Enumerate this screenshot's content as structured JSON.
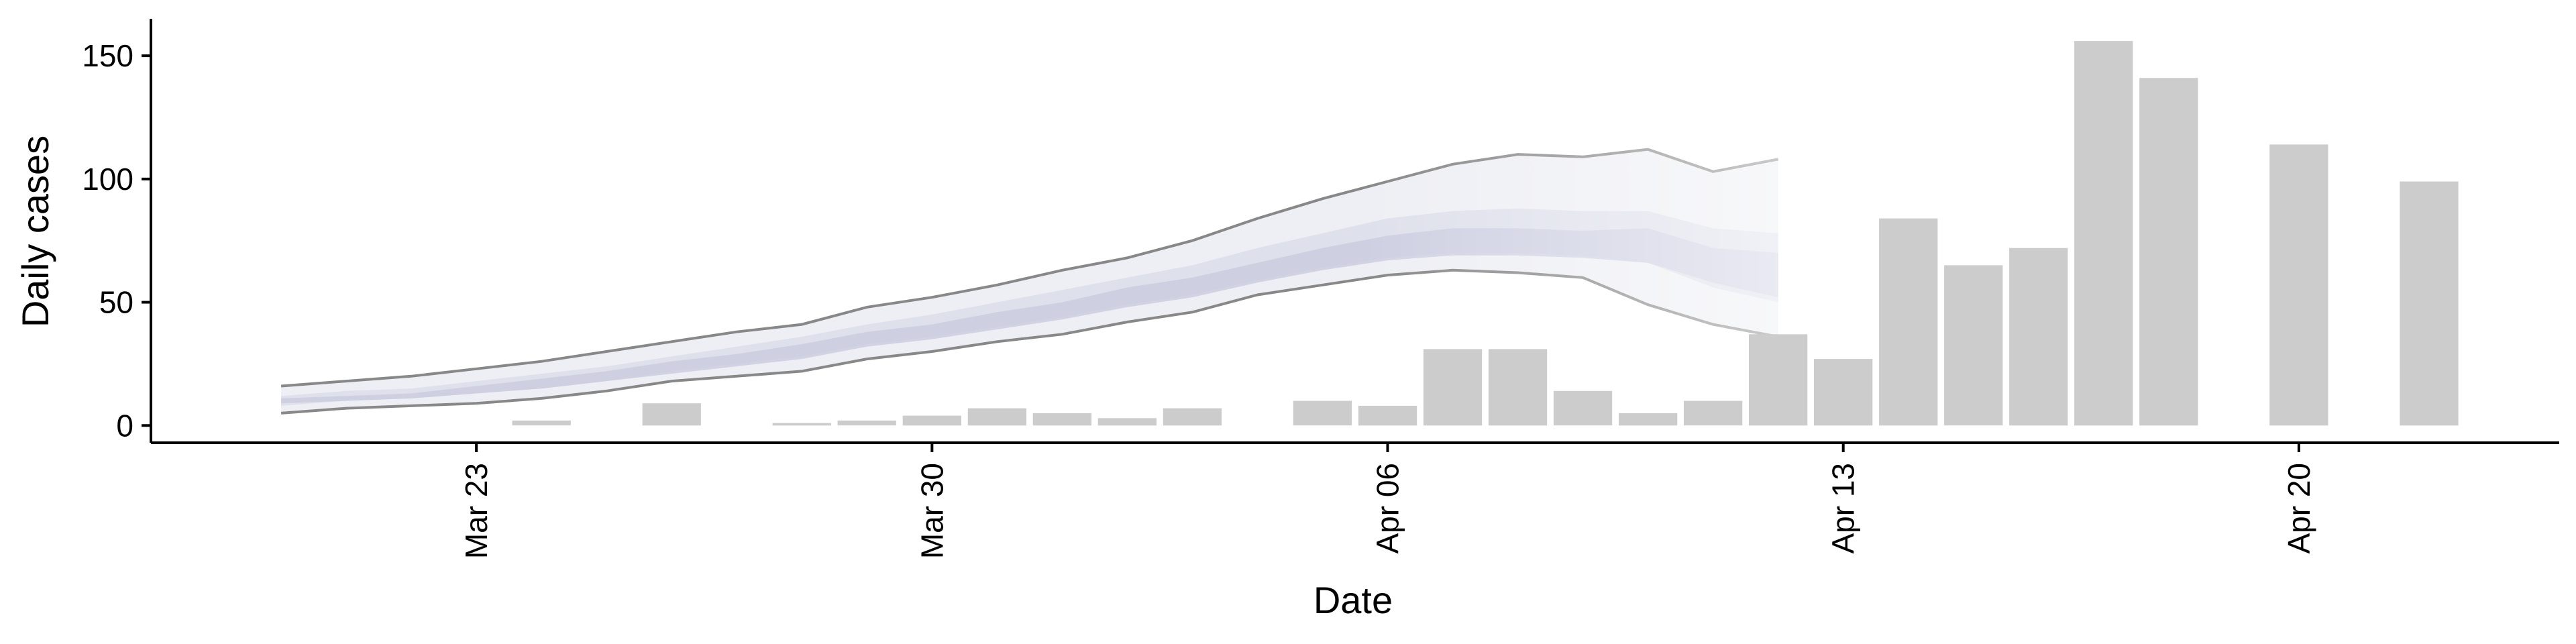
{
  "chart_data": {
    "type": "bar",
    "title": "",
    "xlabel": "Date",
    "ylabel": "Daily cases",
    "xlim": [
      "2020-03-18",
      "2020-04-24"
    ],
    "ylim": [
      -7,
      165
    ],
    "grid": false,
    "x_ticks": [
      {
        "date": "2020-03-23",
        "label": "Mar 23"
      },
      {
        "date": "2020-03-30",
        "label": "Mar 30"
      },
      {
        "date": "2020-04-06",
        "label": "Apr 06"
      },
      {
        "date": "2020-04-13",
        "label": "Apr 13"
      },
      {
        "date": "2020-04-20",
        "label": "Apr 20"
      }
    ],
    "y_ticks": [
      0,
      50,
      100,
      150
    ],
    "bar_color": "#cccccc",
    "bars": [
      {
        "date": "2020-03-24",
        "value": 2
      },
      {
        "date": "2020-03-26",
        "value": 9
      },
      {
        "date": "2020-03-28",
        "value": 1
      },
      {
        "date": "2020-03-29",
        "value": 2
      },
      {
        "date": "2020-03-30",
        "value": 4
      },
      {
        "date": "2020-03-31",
        "value": 7
      },
      {
        "date": "2020-04-01",
        "value": 5
      },
      {
        "date": "2020-04-02",
        "value": 3
      },
      {
        "date": "2020-04-03",
        "value": 7
      },
      {
        "date": "2020-04-05",
        "value": 10
      },
      {
        "date": "2020-04-06",
        "value": 8
      },
      {
        "date": "2020-04-07",
        "value": 31
      },
      {
        "date": "2020-04-08",
        "value": 31
      },
      {
        "date": "2020-04-09",
        "value": 14
      },
      {
        "date": "2020-04-10",
        "value": 5
      },
      {
        "date": "2020-04-11",
        "value": 10
      },
      {
        "date": "2020-04-12",
        "value": 37
      },
      {
        "date": "2020-04-13",
        "value": 27
      },
      {
        "date": "2020-04-14",
        "value": 84
      },
      {
        "date": "2020-04-15",
        "value": 65
      },
      {
        "date": "2020-04-16",
        "value": 72
      },
      {
        "date": "2020-04-17",
        "value": 156
      },
      {
        "date": "2020-04-18",
        "value": 141
      },
      {
        "date": "2020-04-20",
        "value": 114
      },
      {
        "date": "2020-04-22",
        "value": 99
      }
    ],
    "estimate_start_date": "2020-03-20",
    "estimate_bands": {
      "outer": {
        "upper": [
          16,
          18,
          20,
          23,
          26,
          30,
          34,
          38,
          41,
          48,
          52,
          57,
          63,
          68,
          75,
          84,
          92,
          99,
          106,
          110,
          109,
          112,
          103,
          108
        ],
        "lower": [
          5,
          7,
          8,
          9,
          11,
          14,
          18,
          20,
          22,
          27,
          30,
          34,
          37,
          42,
          46,
          53,
          57,
          61,
          63,
          62,
          60,
          49,
          41,
          36
        ]
      },
      "middle": {
        "upper": [
          12,
          14,
          15,
          18,
          21,
          24,
          28,
          32,
          36,
          41,
          45,
          50,
          55,
          60,
          65,
          72,
          78,
          84,
          87,
          88,
          87,
          87,
          80,
          78
        ],
        "lower": [
          8,
          10,
          11,
          13,
          15,
          18,
          22,
          25,
          28,
          33,
          36,
          40,
          44,
          49,
          53,
          59,
          64,
          68,
          70,
          70,
          69,
          66,
          56,
          50
        ]
      },
      "inner": {
        "upper": [
          11,
          12,
          13,
          16,
          19,
          22,
          26,
          29,
          33,
          38,
          41,
          46,
          50,
          56,
          60,
          66,
          72,
          77,
          80,
          80,
          79,
          80,
          72,
          70
        ],
        "lower": [
          9,
          10,
          11,
          13,
          15,
          18,
          21,
          24,
          27,
          32,
          35,
          39,
          43,
          48,
          52,
          58,
          63,
          67,
          69,
          69,
          68,
          66,
          58,
          52
        ]
      }
    },
    "estimate_colors": {
      "outer_fill": "#e8e9f0",
      "middle_fill": "#dadce8",
      "inner_fill": "#c9cce0",
      "boundary_line": "#888888"
    }
  }
}
